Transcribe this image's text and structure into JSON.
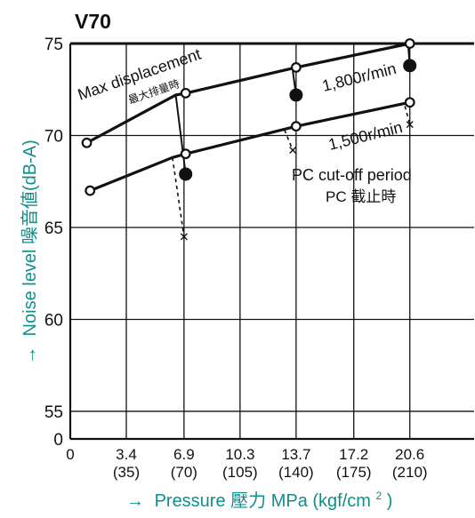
{
  "chart_data": {
    "type": "line",
    "title": "V70",
    "xlabel_arrow": "→",
    "xlabel": "Pressure 壓力 MPa (kgf/cm",
    "xlabel_sup": "2",
    "xlabel_close": ")",
    "ylabel_arrow": "→",
    "ylabel": "Noise level 噪音値(dB-A)",
    "xlim": [
      0,
      24.5
    ],
    "ylim": [
      53.5,
      75
    ],
    "y_ticks": [
      {
        "value": 55,
        "label": "55"
      },
      {
        "value": 60,
        "label": "60"
      },
      {
        "value": 65,
        "label": "65"
      },
      {
        "value": 70,
        "label": "70"
      },
      {
        "value": 75,
        "label": "75"
      }
    ],
    "y_origin_label": "0",
    "x_origin_label": "0",
    "x_ticks": [
      {
        "value": 3.4,
        "mpa": "3.4",
        "kgf": "(35)"
      },
      {
        "value": 6.9,
        "mpa": "6.9",
        "kgf": "(70)"
      },
      {
        "value": 10.3,
        "mpa": "10.3",
        "kgf": "(105)"
      },
      {
        "value": 13.7,
        "mpa": "13.7",
        "kgf": "(140)"
      },
      {
        "value": 17.2,
        "mpa": "17.2",
        "kgf": "(175)"
      },
      {
        "value": 20.6,
        "mpa": "20.6",
        "kgf": "(210)"
      }
    ],
    "grid": true,
    "series": [
      {
        "name": "1,800r/min",
        "line": [
          [
            1.0,
            69.6
          ],
          [
            6.4,
            72.2
          ],
          [
            7.0,
            72.3
          ],
          [
            13.7,
            73.7
          ],
          [
            20.6,
            75.0
          ]
        ],
        "open_markers": [
          [
            1.0,
            69.6
          ],
          [
            7.0,
            72.3
          ],
          [
            13.7,
            73.7
          ],
          [
            20.6,
            75.0
          ]
        ]
      },
      {
        "name": "1,500r/min",
        "line": [
          [
            1.2,
            67.0
          ],
          [
            6.2,
            68.8
          ],
          [
            7.0,
            69.0
          ],
          [
            13.7,
            70.5
          ],
          [
            20.6,
            71.8
          ]
        ],
        "open_markers": [
          [
            1.2,
            67.0
          ],
          [
            7.0,
            69.0
          ],
          [
            13.7,
            70.5
          ],
          [
            20.6,
            71.8
          ]
        ]
      }
    ],
    "pc_cutoff": {
      "label": "PC cut-off period",
      "label_jp": "PC 截止時",
      "filled_points": [
        [
          7.0,
          67.9
        ],
        [
          13.7,
          72.2
        ],
        [
          20.6,
          73.8
        ]
      ],
      "x_points": [
        [
          6.9,
          64.5
        ],
        [
          13.5,
          69.2
        ],
        [
          20.6,
          70.6
        ]
      ],
      "solid_links": [
        [
          [
            6.4,
            72.2
          ],
          [
            7.0,
            67.9
          ]
        ],
        [
          [
            13.5,
            73.5
          ],
          [
            13.7,
            72.2
          ]
        ],
        [
          [
            20.5,
            74.9
          ],
          [
            20.6,
            73.8
          ]
        ]
      ],
      "dashed_links": [
        [
          [
            6.2,
            68.8
          ],
          [
            6.9,
            64.5
          ]
        ],
        [
          [
            13.0,
            70.3
          ],
          [
            13.5,
            69.2
          ]
        ],
        [
          [
            20.3,
            71.6
          ],
          [
            20.6,
            70.6
          ]
        ]
      ]
    },
    "annotations": {
      "max_displacement": "Max displacement",
      "max_displacement_jp": "最大排量時",
      "speed_1800": "1,800r/min",
      "speed_1500": "1,500r/min"
    }
  }
}
